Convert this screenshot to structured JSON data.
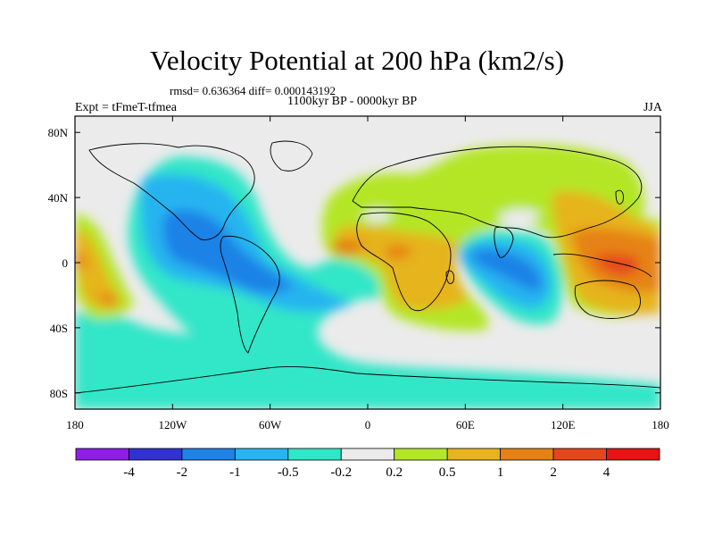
{
  "title": "Velocity Potential at 200 hPa (km2/s)",
  "stats": "rmsd= 0.636364 diff= 0.000143192",
  "period": "1100kyr BP - 0000kyr BP",
  "experiment": "Expt = tFmeT-tfmea",
  "season": "JJA",
  "chart_data": {
    "type": "heatmap",
    "projection": "cylindrical-equidistant",
    "variable": "velocity potential difference at 200 hPa",
    "units": "km2/s",
    "lon_range": [
      -180,
      180
    ],
    "lat_range": [
      -90,
      90
    ],
    "x_ticks": [
      "180",
      "120W",
      "60W",
      "0",
      "60E",
      "120E",
      "180"
    ],
    "x_tick_values": [
      -180,
      -120,
      -60,
      0,
      60,
      120,
      180
    ],
    "y_ticks": [
      "80N",
      "40N",
      "0",
      "40S",
      "80S"
    ],
    "y_tick_values": [
      80,
      40,
      0,
      -40,
      -80
    ],
    "colorbar": {
      "labels": [
        "-4",
        "-2",
        "-1",
        "-0.5",
        "-0.2",
        "0.2",
        "0.5",
        "1",
        "2",
        "4"
      ],
      "colors": [
        "#8c1ee6",
        "#3232d2",
        "#1e82e6",
        "#28b4f0",
        "#32e6c8",
        "#ebebeb",
        "#b4e628",
        "#e6b41e",
        "#e68214",
        "#e6461e",
        "#e61414"
      ]
    }
  }
}
